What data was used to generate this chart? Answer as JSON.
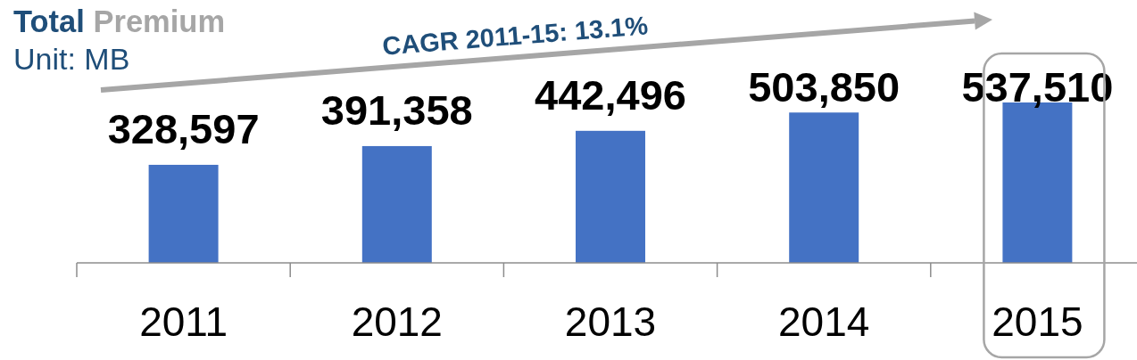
{
  "chart_data": {
    "type": "bar",
    "title": "Total Premium",
    "subtitle": "Unit: MB",
    "annotations": [
      "CAGR 2011-15: 13.1%"
    ],
    "categories": [
      "2011",
      "2012",
      "2013",
      "2014",
      "2015"
    ],
    "values": [
      328597,
      391358,
      442496,
      503850,
      537510
    ],
    "color": "#4472c4",
    "value_labels": [
      "328,597",
      "391,358",
      "442,496",
      "503,850",
      "537,510"
    ]
  }
}
